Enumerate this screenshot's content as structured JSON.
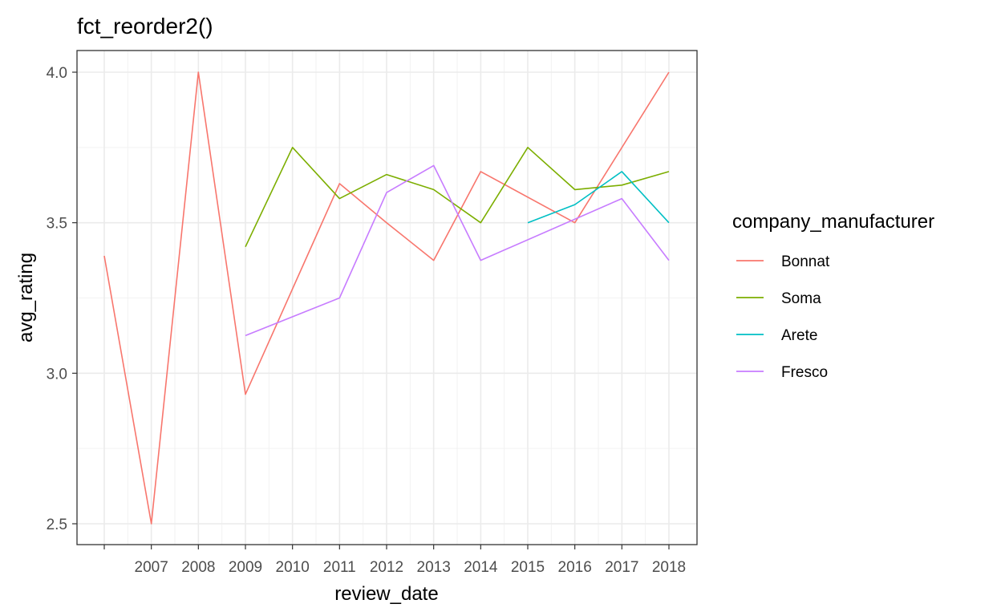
{
  "chart_data": {
    "type": "line",
    "title": "fct_reorder2()",
    "xlabel": "review_date",
    "ylabel": "avg_rating",
    "x_ticks": [
      "2007",
      "2008",
      "2009",
      "2010",
      "2011",
      "2012",
      "2013",
      "2014",
      "2015",
      "2016",
      "2017",
      "2018"
    ],
    "y_ticks": [
      "2.5",
      "3.0",
      "3.5",
      "4.0"
    ],
    "xlim": [
      2006,
      2018
    ],
    "ylim": [
      2.5,
      4.0
    ],
    "grid": true,
    "legend": {
      "title": "company_manufacturer",
      "position": "right"
    },
    "series": [
      {
        "name": "Bonnat",
        "color": "#F8766D",
        "x": [
          2006,
          2007,
          2008,
          2009,
          2011,
          2012,
          2013,
          2014,
          2016,
          2018
        ],
        "y": [
          3.39,
          2.5,
          4.0,
          2.93,
          3.63,
          3.5,
          3.375,
          3.67,
          3.5,
          4.0
        ]
      },
      {
        "name": "Soma",
        "color": "#7CAE00",
        "x": [
          2009,
          2010,
          2011,
          2012,
          2013,
          2014,
          2015,
          2016,
          2017,
          2018
        ],
        "y": [
          3.42,
          3.75,
          3.58,
          3.66,
          3.61,
          3.5,
          3.75,
          3.61,
          3.625,
          3.67
        ]
      },
      {
        "name": "Arete",
        "color": "#00BFC4",
        "x": [
          2015,
          2016,
          2017,
          2018
        ],
        "y": [
          3.5,
          3.56,
          3.67,
          3.5
        ]
      },
      {
        "name": "Fresco",
        "color": "#C77CFF",
        "x": [
          2009,
          2011,
          2012,
          2013,
          2014,
          2017,
          2018
        ],
        "y": [
          3.125,
          3.25,
          3.6,
          3.69,
          3.375,
          3.58,
          3.375
        ]
      }
    ]
  }
}
